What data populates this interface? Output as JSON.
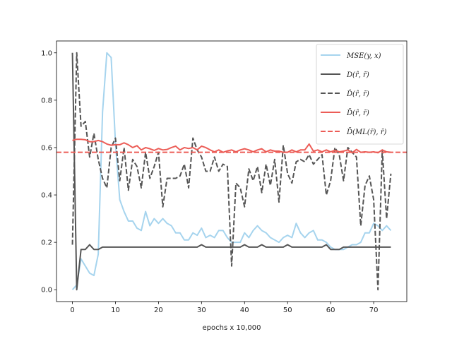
{
  "chart_data": {
    "type": "line",
    "xlabel": "epochs x 10,000",
    "ylabel": "",
    "title": "",
    "xlim": [
      -3.7,
      77.7
    ],
    "ylim": [
      -0.05,
      1.05
    ],
    "xticks": [
      0,
      10,
      20,
      30,
      40,
      50,
      60,
      70
    ],
    "yticks": [
      0.0,
      0.2,
      0.4,
      0.6,
      0.8,
      1.0
    ],
    "ytick_labels": [
      "0.0",
      "0.2",
      "0.4",
      "0.6",
      "0.8",
      "1.0"
    ],
    "grid": false,
    "legend_position": "top-right",
    "hline": {
      "name": "D̄(ML(r̄), r̄)",
      "y": 0.58,
      "color": "#ec5d57",
      "dash": "dashed"
    },
    "series": [
      {
        "name": "MSE(y, x)",
        "color": "#a6d4ee",
        "dash": "solid",
        "x": [
          0,
          1,
          2,
          3,
          4,
          5,
          6,
          7,
          8,
          9,
          10,
          11,
          12,
          13,
          14,
          15,
          16,
          17,
          18,
          19,
          20,
          21,
          22,
          23,
          24,
          25,
          26,
          27,
          28,
          29,
          30,
          31,
          32,
          33,
          34,
          35,
          36,
          37,
          38,
          39,
          40,
          41,
          42,
          43,
          44,
          45,
          46,
          47,
          48,
          49,
          50,
          51,
          52,
          53,
          54,
          55,
          56,
          57,
          58,
          59,
          60,
          61,
          62,
          63,
          64,
          65,
          66,
          67,
          68,
          69,
          70,
          71,
          72,
          73,
          74
        ],
        "y": [
          0.0,
          0.02,
          0.13,
          0.1,
          0.07,
          0.06,
          0.15,
          0.75,
          1.0,
          0.98,
          0.62,
          0.38,
          0.33,
          0.29,
          0.29,
          0.26,
          0.25,
          0.33,
          0.27,
          0.3,
          0.28,
          0.3,
          0.28,
          0.27,
          0.24,
          0.24,
          0.21,
          0.21,
          0.24,
          0.23,
          0.26,
          0.22,
          0.23,
          0.22,
          0.25,
          0.25,
          0.22,
          0.2,
          0.2,
          0.2,
          0.24,
          0.22,
          0.25,
          0.27,
          0.25,
          0.24,
          0.22,
          0.21,
          0.2,
          0.22,
          0.23,
          0.22,
          0.28,
          0.24,
          0.22,
          0.24,
          0.25,
          0.21,
          0.21,
          0.2,
          0.18,
          0.17,
          0.17,
          0.17,
          0.18,
          0.19,
          0.19,
          0.2,
          0.24,
          0.24,
          0.28,
          0.27,
          0.25,
          0.27,
          0.25
        ]
      },
      {
        "name": "D(r̂, r̄)",
        "color": "#555555",
        "dash": "solid",
        "x": [
          0,
          1,
          2,
          3,
          4,
          5,
          6,
          7,
          8,
          9,
          10,
          11,
          12,
          13,
          14,
          15,
          16,
          17,
          18,
          19,
          20,
          21,
          22,
          23,
          24,
          25,
          26,
          27,
          28,
          29,
          30,
          31,
          32,
          33,
          34,
          35,
          36,
          37,
          38,
          39,
          40,
          41,
          42,
          43,
          44,
          45,
          46,
          47,
          48,
          49,
          50,
          51,
          52,
          53,
          54,
          55,
          56,
          57,
          58,
          59,
          60,
          61,
          62,
          63,
          64,
          65,
          66,
          67,
          68,
          69,
          70,
          71,
          72,
          73,
          74
        ],
        "y": [
          1.0,
          0.0,
          0.17,
          0.17,
          0.19,
          0.17,
          0.17,
          0.18,
          0.18,
          0.18,
          0.18,
          0.18,
          0.18,
          0.18,
          0.18,
          0.18,
          0.18,
          0.18,
          0.18,
          0.18,
          0.18,
          0.18,
          0.18,
          0.18,
          0.18,
          0.18,
          0.18,
          0.18,
          0.18,
          0.18,
          0.19,
          0.18,
          0.18,
          0.18,
          0.18,
          0.18,
          0.18,
          0.18,
          0.18,
          0.18,
          0.19,
          0.18,
          0.18,
          0.18,
          0.19,
          0.18,
          0.18,
          0.18,
          0.18,
          0.18,
          0.19,
          0.18,
          0.18,
          0.18,
          0.18,
          0.18,
          0.18,
          0.18,
          0.18,
          0.19,
          0.17,
          0.17,
          0.17,
          0.18,
          0.18,
          0.18,
          0.18,
          0.18,
          0.18,
          0.18,
          0.18,
          0.18,
          0.18,
          0.18,
          0.18
        ]
      },
      {
        "name": "D̂(r̂, r̄)",
        "color": "#555555",
        "dash": "dashed",
        "x": [
          0,
          1,
          2,
          3,
          4,
          5,
          6,
          7,
          8,
          9,
          10,
          11,
          12,
          13,
          14,
          15,
          16,
          17,
          18,
          19,
          20,
          21,
          22,
          23,
          24,
          25,
          26,
          27,
          28,
          29,
          30,
          31,
          32,
          33,
          34,
          35,
          36,
          37,
          38,
          39,
          40,
          41,
          42,
          43,
          44,
          45,
          46,
          47,
          48,
          49,
          50,
          51,
          52,
          53,
          54,
          55,
          56,
          57,
          58,
          59,
          60,
          61,
          62,
          63,
          64,
          65,
          66,
          67,
          68,
          69,
          70,
          71,
          72,
          73,
          74
        ],
        "y": [
          0.19,
          1.0,
          0.69,
          0.71,
          0.56,
          0.66,
          0.55,
          0.47,
          0.43,
          0.6,
          0.64,
          0.46,
          0.6,
          0.42,
          0.55,
          0.52,
          0.43,
          0.58,
          0.47,
          0.52,
          0.58,
          0.35,
          0.47,
          0.47,
          0.47,
          0.48,
          0.53,
          0.43,
          0.64,
          0.59,
          0.56,
          0.5,
          0.5,
          0.56,
          0.5,
          0.53,
          0.52,
          0.1,
          0.45,
          0.43,
          0.35,
          0.51,
          0.46,
          0.52,
          0.41,
          0.53,
          0.44,
          0.55,
          0.37,
          0.61,
          0.49,
          0.45,
          0.54,
          0.55,
          0.54,
          0.57,
          0.53,
          0.55,
          0.57,
          0.4,
          0.46,
          0.6,
          0.57,
          0.46,
          0.6,
          0.58,
          0.56,
          0.27,
          0.44,
          0.48,
          0.38,
          0.0,
          0.59,
          0.3,
          0.49
        ]
      },
      {
        "name": "D̄(r̂, r̄)",
        "color": "#ec5d57",
        "dash": "solid",
        "x": [
          0,
          1,
          2,
          3,
          4,
          5,
          6,
          7,
          8,
          9,
          10,
          11,
          12,
          13,
          14,
          15,
          16,
          17,
          18,
          19,
          20,
          21,
          22,
          23,
          24,
          25,
          26,
          27,
          28,
          29,
          30,
          31,
          32,
          33,
          34,
          35,
          36,
          37,
          38,
          39,
          40,
          41,
          42,
          43,
          44,
          45,
          46,
          47,
          48,
          49,
          50,
          51,
          52,
          53,
          54,
          55,
          56,
          57,
          58,
          59,
          60,
          61,
          62,
          63,
          64,
          65,
          66,
          67,
          68,
          69,
          70,
          71,
          72,
          73,
          74
        ],
        "y": [
          0.63,
          0.635,
          0.635,
          0.633,
          0.625,
          0.625,
          0.63,
          0.625,
          0.615,
          0.61,
          0.612,
          0.612,
          0.62,
          0.612,
          0.6,
          0.608,
          0.59,
          0.6,
          0.595,
          0.588,
          0.596,
          0.59,
          0.592,
          0.6,
          0.606,
          0.59,
          0.6,
          0.596,
          0.6,
          0.59,
          0.606,
          0.6,
          0.59,
          0.582,
          0.59,
          0.58,
          0.586,
          0.59,
          0.582,
          0.59,
          0.595,
          0.59,
          0.582,
          0.59,
          0.595,
          0.582,
          0.59,
          0.585,
          0.585,
          0.58,
          0.58,
          0.59,
          0.582,
          0.59,
          0.59,
          0.615,
          0.585,
          0.59,
          0.582,
          0.59,
          0.582,
          0.588,
          0.582,
          0.585,
          0.59,
          0.578,
          0.592,
          0.58,
          0.582,
          0.58,
          0.582,
          0.578,
          0.59,
          0.582,
          0.58
        ]
      }
    ]
  }
}
